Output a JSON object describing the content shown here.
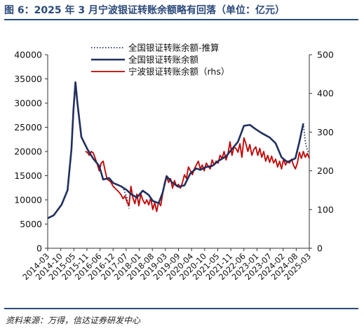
{
  "title": "图 6：2025 年 3 月宁波银证转账余额略有回落（单位：亿元）",
  "source": "资料来源：万得，信达证券研发中心",
  "chart_data": {
    "type": "line",
    "y_left": {
      "min": 0,
      "max": 40000,
      "ticks": [
        "0",
        "5000",
        "10000",
        "15000",
        "20000",
        "25000",
        "30000",
        "35000",
        "40000"
      ]
    },
    "y_right": {
      "min": 0,
      "max": 500,
      "ticks": [
        "0",
        "100",
        "200",
        "300",
        "400",
        "500"
      ]
    },
    "x_range": [
      "2014-03",
      "2025-03"
    ],
    "x_ticks": [
      "2014-03",
      "2014-10",
      "2015-05",
      "2015-12",
      "2016-07",
      "2017-02",
      "2017-09",
      "2018-04",
      "2018-11",
      "2019-06",
      "2020-01",
      "2020-08",
      "2021-03",
      "2021-10",
      "2022-05",
      "2022-12",
      "2023-07",
      "2024-02",
      "2024-09",
      "2025-04"
    ],
    "x_tick_labels": [
      "2014-03",
      "2014-10",
      "2015-05",
      "2015-11",
      "2016-06",
      "2016-12",
      "2017-07",
      "2018-01",
      "2018-08",
      "2019-03",
      "2019-09",
      "2020-04",
      "2020-10",
      "2021-05",
      "2021-11",
      "2022-06",
      "2023-01",
      "2023-07",
      "2024-02",
      "2024-08",
      "2025-03"
    ],
    "colors": {
      "national": "#1f2f5f",
      "ningbo": "#c00000"
    },
    "series": [
      {
        "name": "全国银证转账余额-推算",
        "axis": "left",
        "style": "dotted",
        "points": [
          [
            "2017-02",
            13200
          ],
          [
            "2017-05",
            12500
          ],
          [
            "2017-07",
            10500
          ],
          [
            "2017-08",
            8200
          ]
        ],
        "points2": [
          [
            "2024-12",
            25800
          ],
          [
            "2025-01",
            22000
          ],
          [
            "2025-02",
            20200
          ],
          [
            "2025-03",
            19700
          ]
        ]
      },
      {
        "name": "全国银证转账余额",
        "axis": "left",
        "style": "solid",
        "points": [
          [
            "2014-03",
            6200
          ],
          [
            "2014-06",
            6800
          ],
          [
            "2014-10",
            9000
          ],
          [
            "2015-01",
            12000
          ],
          [
            "2015-03",
            20500
          ],
          [
            "2015-04",
            28500
          ],
          [
            "2015-05",
            34300
          ],
          [
            "2015-06",
            30000
          ],
          [
            "2015-08",
            23000
          ],
          [
            "2015-11",
            20500
          ],
          [
            "2016-02",
            18500
          ],
          [
            "2016-05",
            17000
          ],
          [
            "2016-07",
            14200
          ],
          [
            "2016-10",
            14500
          ],
          [
            "2016-12",
            13500
          ],
          [
            "2017-04",
            12800
          ],
          [
            "2017-07",
            12000
          ],
          [
            "2017-09",
            11200
          ],
          [
            "2017-12",
            10500
          ],
          [
            "2018-03",
            11900
          ],
          [
            "2018-06",
            11000
          ],
          [
            "2018-08",
            9800
          ],
          [
            "2018-11",
            9300
          ],
          [
            "2019-01",
            11500
          ],
          [
            "2019-03",
            14900
          ],
          [
            "2019-06",
            13500
          ],
          [
            "2019-09",
            12700
          ],
          [
            "2019-12",
            13000
          ],
          [
            "2020-03",
            15500
          ],
          [
            "2020-06",
            16500
          ],
          [
            "2020-08",
            16200
          ],
          [
            "2020-11",
            16800
          ],
          [
            "2021-02",
            17000
          ],
          [
            "2021-05",
            18000
          ],
          [
            "2021-09",
            19000
          ],
          [
            "2021-12",
            20500
          ],
          [
            "2022-03",
            22000
          ],
          [
            "2022-06",
            25300
          ],
          [
            "2022-09",
            25500
          ],
          [
            "2022-12",
            24600
          ],
          [
            "2023-03",
            23800
          ],
          [
            "2023-07",
            22900
          ],
          [
            "2023-10",
            21700
          ],
          [
            "2024-01",
            18800
          ],
          [
            "2024-04",
            17800
          ],
          [
            "2024-08",
            18600
          ],
          [
            "2024-10",
            22000
          ],
          [
            "2024-12",
            25800
          ]
        ]
      },
      {
        "name": "宁波银证转账余额（rhs）",
        "axis": "right",
        "style": "solid",
        "points": [
          [
            "2015-10",
            250
          ],
          [
            "2015-11",
            248
          ],
          [
            "2015-12",
            240
          ],
          [
            "2016-01",
            250
          ],
          [
            "2016-02",
            246
          ],
          [
            "2016-03",
            232
          ],
          [
            "2016-04",
            218
          ],
          [
            "2016-05",
            200
          ],
          [
            "2016-06",
            220
          ],
          [
            "2016-07",
            225
          ],
          [
            "2016-08",
            200
          ],
          [
            "2016-09",
            178
          ],
          [
            "2016-10",
            175
          ],
          [
            "2016-11",
            170
          ],
          [
            "2016-12",
            160
          ],
          [
            "2017-01",
            155
          ],
          [
            "2017-02",
            150
          ],
          [
            "2017-03",
            145
          ],
          [
            "2017-04",
            138
          ],
          [
            "2017-05",
            128
          ],
          [
            "2017-06",
            135
          ],
          [
            "2017-07",
            120
          ],
          [
            "2017-08",
            110
          ],
          [
            "2017-09",
            160
          ],
          [
            "2017-10",
            130
          ],
          [
            "2017-11",
            115
          ],
          [
            "2017-12",
            140
          ],
          [
            "2018-01",
            110
          ],
          [
            "2018-02",
            140
          ],
          [
            "2018-03",
            125
          ],
          [
            "2018-04",
            115
          ],
          [
            "2018-05",
            125
          ],
          [
            "2018-06",
            112
          ],
          [
            "2018-07",
            130
          ],
          [
            "2018-08",
            100
          ],
          [
            "2018-09",
            118
          ],
          [
            "2018-10",
            95
          ],
          [
            "2018-11",
            120
          ],
          [
            "2018-12",
            110
          ],
          [
            "2019-01",
            140
          ],
          [
            "2019-02",
            170
          ],
          [
            "2019-03",
            185
          ],
          [
            "2019-04",
            170
          ],
          [
            "2019-05",
            180
          ],
          [
            "2019-06",
            155
          ],
          [
            "2019-07",
            175
          ],
          [
            "2019-08",
            160
          ],
          [
            "2019-09",
            165
          ],
          [
            "2019-10",
            155
          ],
          [
            "2019-11",
            170
          ],
          [
            "2019-12",
            190
          ],
          [
            "2020-01",
            180
          ],
          [
            "2020-02",
            210
          ],
          [
            "2020-03",
            200
          ],
          [
            "2020-04",
            190
          ],
          [
            "2020-05",
            205
          ],
          [
            "2020-06",
            215
          ],
          [
            "2020-07",
            225
          ],
          [
            "2020-08",
            205
          ],
          [
            "2020-09",
            215
          ],
          [
            "2020-10",
            200
          ],
          [
            "2020-11",
            220
          ],
          [
            "2020-12",
            212
          ],
          [
            "2021-01",
            205
          ],
          [
            "2021-02",
            228
          ],
          [
            "2021-03",
            215
          ],
          [
            "2021-04",
            225
          ],
          [
            "2021-05",
            220
          ],
          [
            "2021-06",
            240
          ],
          [
            "2021-07",
            232
          ],
          [
            "2021-08",
            250
          ],
          [
            "2021-09",
            228
          ],
          [
            "2021-10",
            245
          ],
          [
            "2021-11",
            275
          ],
          [
            "2021-12",
            240
          ],
          [
            "2022-01",
            262
          ],
          [
            "2022-02",
            258
          ],
          [
            "2022-03",
            248
          ],
          [
            "2022-04",
            270
          ],
          [
            "2022-05",
            235
          ],
          [
            "2022-06",
            285
          ],
          [
            "2022-07",
            270
          ],
          [
            "2022-08",
            250
          ],
          [
            "2022-09",
            268
          ],
          [
            "2022-10",
            240
          ],
          [
            "2022-11",
            255
          ],
          [
            "2022-12",
            262
          ],
          [
            "2023-01",
            240
          ],
          [
            "2023-02",
            258
          ],
          [
            "2023-03",
            235
          ],
          [
            "2023-04",
            250
          ],
          [
            "2023-05",
            225
          ],
          [
            "2023-06",
            240
          ],
          [
            "2023-07",
            222
          ],
          [
            "2023-08",
            238
          ],
          [
            "2023-09",
            220
          ],
          [
            "2023-10",
            230
          ],
          [
            "2023-11",
            210
          ],
          [
            "2023-12",
            225
          ],
          [
            "2024-01",
            205
          ],
          [
            "2024-02",
            230
          ],
          [
            "2024-03",
            215
          ],
          [
            "2024-04",
            225
          ],
          [
            "2024-05",
            220
          ],
          [
            "2024-06",
            230
          ],
          [
            "2024-07",
            215
          ],
          [
            "2024-08",
            205
          ],
          [
            "2024-09",
            220
          ],
          [
            "2024-10",
            248
          ],
          [
            "2024-11",
            232
          ],
          [
            "2024-12",
            250
          ],
          [
            "2025-01",
            235
          ],
          [
            "2025-02",
            245
          ],
          [
            "2025-03",
            232
          ]
        ]
      }
    ],
    "legend": {
      "placement": "top-center"
    }
  }
}
